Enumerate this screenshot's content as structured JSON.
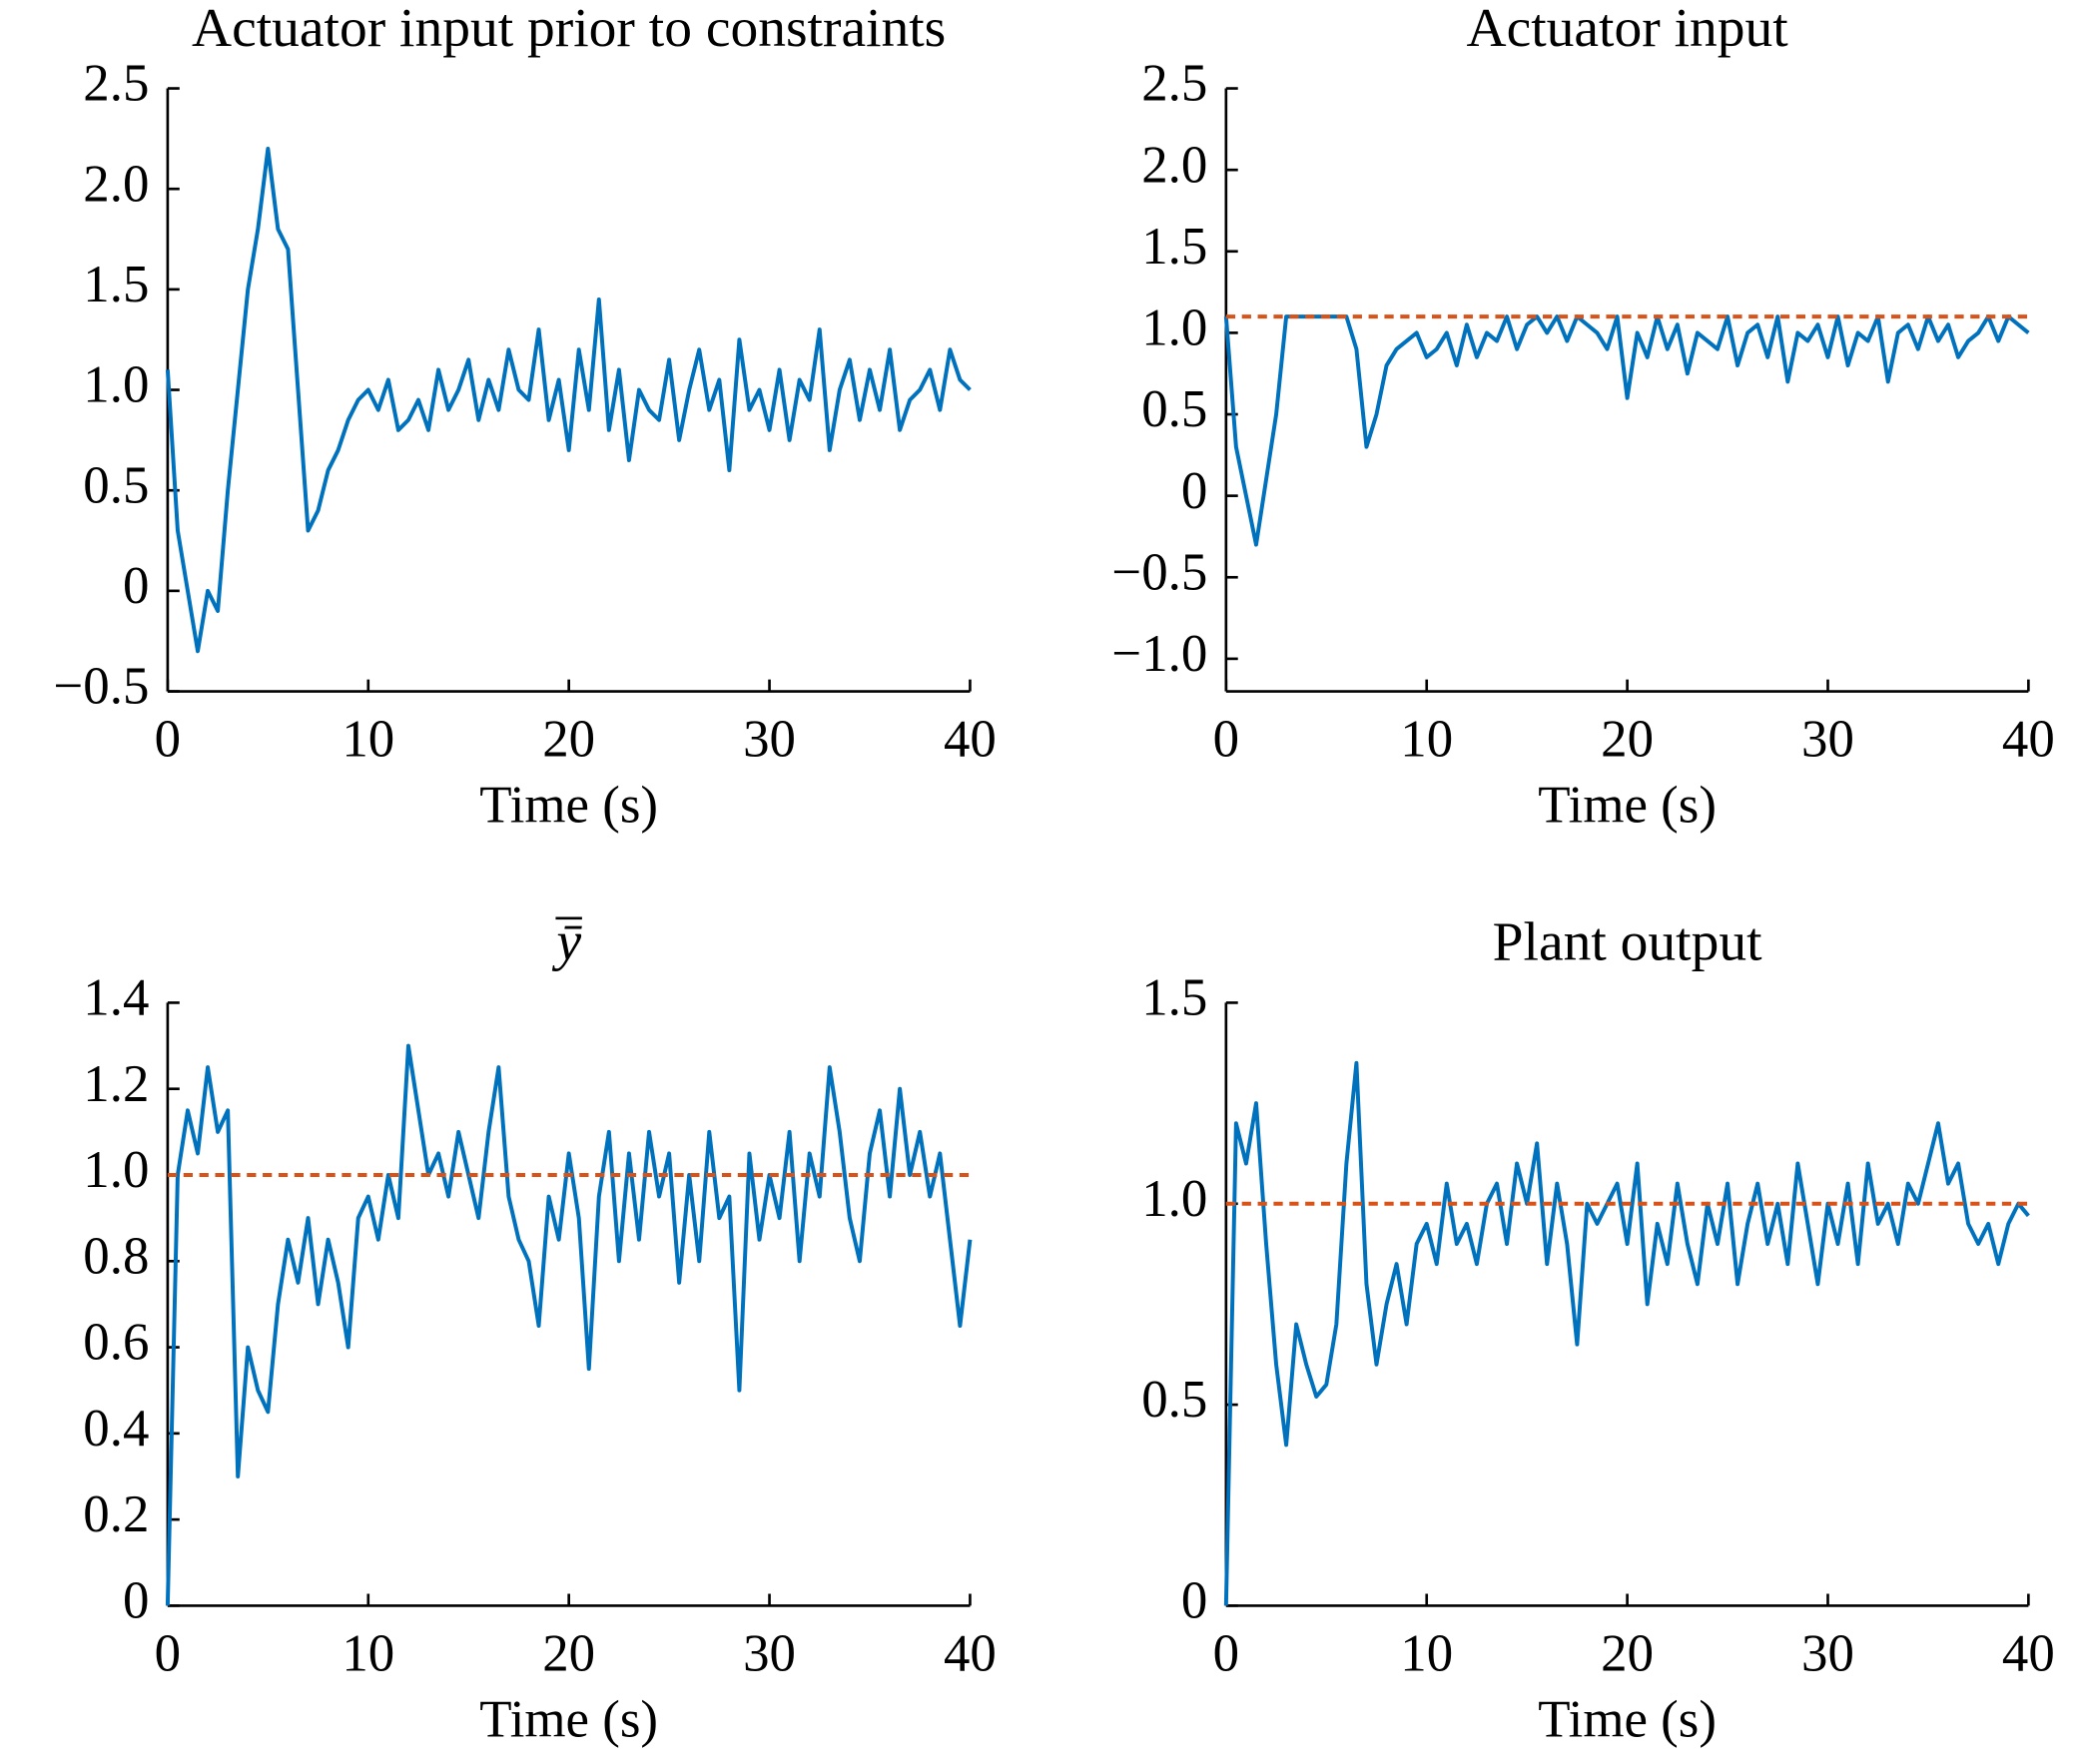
{
  "chart_data": [
    {
      "type": "line",
      "title": "Actuator input prior to constraints",
      "xlabel": "Time (s)",
      "color": "#0072bd",
      "x": [
        0,
        0.5,
        1,
        1.5,
        2,
        2.5,
        3,
        3.5,
        4,
        4.5,
        5,
        5.5,
        6,
        6.5,
        7,
        7.5,
        8,
        8.5,
        9,
        9.5,
        10,
        10.5,
        11,
        11.5,
        12,
        12.5,
        13,
        13.5,
        14,
        14.5,
        15,
        15.5,
        16,
        16.5,
        17,
        17.5,
        18,
        18.5,
        19,
        19.5,
        20,
        20.5,
        21,
        21.5,
        22,
        22.5,
        23,
        23.5,
        24,
        24.5,
        25,
        25.5,
        26,
        26.5,
        27,
        27.5,
        28,
        28.5,
        29,
        29.5,
        30,
        30.5,
        31,
        31.5,
        32,
        32.5,
        33,
        33.5,
        34,
        34.5,
        35,
        35.5,
        36,
        36.5,
        37,
        37.5,
        38,
        38.5,
        39,
        39.5,
        40
      ],
      "values": [
        1.1,
        0.3,
        0.0,
        -0.3,
        0.0,
        -0.1,
        0.5,
        1.0,
        1.5,
        1.8,
        2.2,
        1.8,
        1.7,
        1.0,
        0.3,
        0.4,
        0.6,
        0.7,
        0.85,
        0.95,
        1.0,
        0.9,
        1.05,
        0.8,
        0.85,
        0.95,
        0.8,
        1.1,
        0.9,
        1.0,
        1.15,
        0.85,
        1.05,
        0.9,
        1.2,
        1.0,
        0.95,
        1.3,
        0.85,
        1.05,
        0.7,
        1.2,
        0.9,
        1.45,
        0.8,
        1.1,
        0.65,
        1.0,
        0.9,
        0.85,
        1.15,
        0.75,
        1.0,
        1.2,
        0.9,
        1.05,
        0.6,
        1.25,
        0.9,
        1.0,
        0.8,
        1.1,
        0.75,
        1.05,
        0.95,
        1.3,
        0.7,
        1.0,
        1.15,
        0.85,
        1.1,
        0.9,
        1.2,
        0.8,
        0.95,
        1.0,
        1.1,
        0.9,
        1.2,
        1.05,
        1.0
      ],
      "xlim": [
        0,
        40
      ],
      "xticks": [
        0,
        10,
        20,
        30,
        40
      ],
      "ylim": [
        -0.5,
        2.5
      ],
      "yticks": [
        {
          "value": -0.5,
          "label": "−0.5"
        },
        0,
        0.5,
        {
          "value": 1.0,
          "label": "1.0"
        },
        1.5,
        {
          "value": 2.0,
          "label": "2.0"
        },
        2.5
      ]
    },
    {
      "type": "line",
      "title": "Actuator input",
      "xlabel": "Time (s)",
      "color": "#0072bd",
      "x": [
        0,
        0.5,
        1,
        1.5,
        2,
        2.5,
        3,
        3.5,
        4,
        4.5,
        5,
        5.5,
        6,
        6.5,
        7,
        7.5,
        8,
        8.5,
        9,
        9.5,
        10,
        10.5,
        11,
        11.5,
        12,
        12.5,
        13,
        13.5,
        14,
        14.5,
        15,
        15.5,
        16,
        16.5,
        17,
        17.5,
        18,
        18.5,
        19,
        19.5,
        20,
        20.5,
        21,
        21.5,
        22,
        22.5,
        23,
        23.5,
        24,
        24.5,
        25,
        25.5,
        26,
        26.5,
        27,
        27.5,
        28,
        28.5,
        29,
        29.5,
        30,
        30.5,
        31,
        31.5,
        32,
        32.5,
        33,
        33.5,
        34,
        34.5,
        35,
        35.5,
        36,
        36.5,
        37,
        37.5,
        38,
        38.5,
        39,
        39.5,
        40
      ],
      "values": [
        1.1,
        0.3,
        0.0,
        -0.3,
        0.1,
        0.5,
        1.1,
        1.1,
        1.1,
        1.1,
        1.1,
        1.1,
        1.1,
        0.9,
        0.3,
        0.5,
        0.8,
        0.9,
        0.95,
        1.0,
        0.85,
        0.9,
        1.0,
        0.8,
        1.05,
        0.85,
        1.0,
        0.95,
        1.1,
        0.9,
        1.05,
        1.1,
        1.0,
        1.1,
        0.95,
        1.1,
        1.05,
        1.0,
        0.9,
        1.1,
        0.6,
        1.0,
        0.85,
        1.1,
        0.9,
        1.05,
        0.75,
        1.0,
        0.95,
        0.9,
        1.1,
        0.8,
        1.0,
        1.05,
        0.85,
        1.1,
        0.7,
        1.0,
        0.95,
        1.05,
        0.85,
        1.1,
        0.8,
        1.0,
        0.95,
        1.1,
        0.7,
        1.0,
        1.05,
        0.9,
        1.1,
        0.95,
        1.05,
        0.85,
        0.95,
        1.0,
        1.1,
        0.95,
        1.1,
        1.05,
        1.0
      ],
      "reference_line": {
        "value": 1.1,
        "color": "#d95319"
      },
      "xlim": [
        0,
        40
      ],
      "xticks": [
        0,
        10,
        20,
        30,
        40
      ],
      "ylim": [
        -1.2,
        2.5
      ],
      "yticks": [
        {
          "value": -1.0,
          "label": "−1.0"
        },
        {
          "value": -0.5,
          "label": "−0.5"
        },
        0,
        0.5,
        {
          "value": 1.0,
          "label": "1.0"
        },
        1.5,
        {
          "value": 2.0,
          "label": "2.0"
        },
        2.5
      ]
    },
    {
      "type": "line",
      "title": "ȳ",
      "xlabel": "Time (s)",
      "color": "#0072bd",
      "x": [
        0,
        0.5,
        1,
        1.5,
        2,
        2.5,
        3,
        3.5,
        4,
        4.5,
        5,
        5.5,
        6,
        6.5,
        7,
        7.5,
        8,
        8.5,
        9,
        9.5,
        10,
        10.5,
        11,
        11.5,
        12,
        12.5,
        13,
        13.5,
        14,
        14.5,
        15,
        15.5,
        16,
        16.5,
        17,
        17.5,
        18,
        18.5,
        19,
        19.5,
        20,
        20.5,
        21,
        21.5,
        22,
        22.5,
        23,
        23.5,
        24,
        24.5,
        25,
        25.5,
        26,
        26.5,
        27,
        27.5,
        28,
        28.5,
        29,
        29.5,
        30,
        30.5,
        31,
        31.5,
        32,
        32.5,
        33,
        33.5,
        34,
        34.5,
        35,
        35.5,
        36,
        36.5,
        37,
        37.5,
        38,
        38.5,
        39,
        39.5,
        40
      ],
      "values": [
        0,
        1.0,
        1.15,
        1.05,
        1.25,
        1.1,
        1.15,
        0.3,
        0.6,
        0.5,
        0.45,
        0.7,
        0.85,
        0.75,
        0.9,
        0.7,
        0.85,
        0.75,
        0.6,
        0.9,
        0.95,
        0.85,
        1.0,
        0.9,
        1.3,
        1.15,
        1.0,
        1.05,
        0.95,
        1.1,
        1.0,
        0.9,
        1.1,
        1.25,
        0.95,
        0.85,
        0.8,
        0.65,
        0.95,
        0.85,
        1.05,
        0.9,
        0.55,
        0.95,
        1.1,
        0.8,
        1.05,
        0.85,
        1.1,
        0.95,
        1.05,
        0.75,
        1.0,
        0.8,
        1.1,
        0.9,
        0.95,
        0.5,
        1.05,
        0.85,
        1.0,
        0.9,
        1.1,
        0.8,
        1.05,
        0.95,
        1.25,
        1.1,
        0.9,
        0.8,
        1.05,
        1.15,
        0.95,
        1.2,
        1.0,
        1.1,
        0.95,
        1.05,
        0.85,
        0.65,
        0.85
      ],
      "reference_line": {
        "value": 1.0,
        "color": "#d95319"
      },
      "xlim": [
        0,
        40
      ],
      "xticks": [
        0,
        10,
        20,
        30,
        40
      ],
      "ylim": [
        0,
        1.4
      ],
      "yticks": [
        0,
        0.2,
        0.4,
        0.6,
        0.8,
        {
          "value": 1.0,
          "label": "1.0"
        },
        1.2,
        1.4
      ]
    },
    {
      "type": "line",
      "title": "Plant output",
      "xlabel": "Time (s)",
      "color": "#0072bd",
      "x": [
        0,
        0.5,
        1,
        1.5,
        2,
        2.5,
        3,
        3.5,
        4,
        4.5,
        5,
        5.5,
        6,
        6.5,
        7,
        7.5,
        8,
        8.5,
        9,
        9.5,
        10,
        10.5,
        11,
        11.5,
        12,
        12.5,
        13,
        13.5,
        14,
        14.5,
        15,
        15.5,
        16,
        16.5,
        17,
        17.5,
        18,
        18.5,
        19,
        19.5,
        20,
        20.5,
        21,
        21.5,
        22,
        22.5,
        23,
        23.5,
        24,
        24.5,
        25,
        25.5,
        26,
        26.5,
        27,
        27.5,
        28,
        28.5,
        29,
        29.5,
        30,
        30.5,
        31,
        31.5,
        32,
        32.5,
        33,
        33.5,
        34,
        34.5,
        35,
        35.5,
        36,
        36.5,
        37,
        37.5,
        38,
        38.5,
        39,
        39.5,
        40
      ],
      "values": [
        0,
        1.2,
        1.1,
        1.25,
        0.9,
        0.6,
        0.4,
        0.7,
        0.6,
        0.52,
        0.55,
        0.7,
        1.1,
        1.35,
        0.8,
        0.6,
        0.75,
        0.85,
        0.7,
        0.9,
        0.95,
        0.85,
        1.05,
        0.9,
        0.95,
        0.85,
        1.0,
        1.05,
        0.9,
        1.1,
        1.0,
        1.15,
        0.85,
        1.05,
        0.9,
        0.65,
        1.0,
        0.95,
        1.0,
        1.05,
        0.9,
        1.1,
        0.75,
        0.95,
        0.85,
        1.05,
        0.9,
        0.8,
        1.0,
        0.9,
        1.05,
        0.8,
        0.95,
        1.05,
        0.9,
        1.0,
        0.85,
        1.1,
        0.95,
        0.8,
        1.0,
        0.9,
        1.05,
        0.85,
        1.1,
        0.95,
        1.0,
        0.9,
        1.05,
        1.0,
        1.1,
        1.2,
        1.05,
        1.1,
        0.95,
        0.9,
        0.95,
        0.85,
        0.95,
        1.0,
        0.97
      ],
      "reference_line": {
        "value": 1.0,
        "color": "#d95319"
      },
      "xlim": [
        0,
        40
      ],
      "xticks": [
        0,
        10,
        20,
        30,
        40
      ],
      "ylim": [
        0,
        1.5
      ],
      "yticks": [
        0,
        0.5,
        {
          "value": 1.0,
          "label": "1.0"
        },
        1.5
      ]
    }
  ]
}
